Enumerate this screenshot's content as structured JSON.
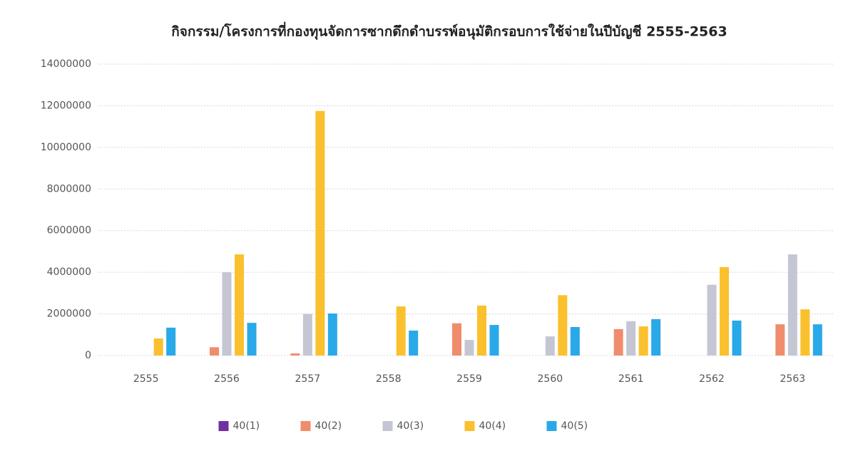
{
  "chart_data": {
    "type": "bar",
    "title": "กิจกรรม/โครงการที่กองทุนจัดการซากดึกดำบรรพ์อนุมัติกรอบการใช้จ่ายในปีบัญชี 2555-2563",
    "categories": [
      "2555",
      "2556",
      "2557",
      "2558",
      "2559",
      "2560",
      "2561",
      "2562",
      "2563"
    ],
    "series": [
      {
        "name": "40(1)",
        "color": "#7030a0",
        "values": [
          0,
          0,
          0,
          0,
          0,
          0,
          0,
          0,
          0
        ]
      },
      {
        "name": "40(2)",
        "color": "#f08c6c",
        "values": [
          0,
          400000,
          100000,
          0,
          1550000,
          0,
          1270000,
          0,
          1500000
        ]
      },
      {
        "name": "40(3)",
        "color": "#c4c6d4",
        "values": [
          0,
          4000000,
          2000000,
          0,
          750000,
          920000,
          1650000,
          3400000,
          4860000
        ]
      },
      {
        "name": "40(4)",
        "color": "#fbc02d",
        "values": [
          820000,
          4860000,
          11750000,
          2360000,
          2400000,
          2900000,
          1400000,
          4250000,
          2220000
        ]
      },
      {
        "name": "40(5)",
        "color": "#29a9e8",
        "values": [
          1340000,
          1570000,
          2020000,
          1200000,
          1470000,
          1370000,
          1750000,
          1680000,
          1500000
        ]
      }
    ],
    "ylim": [
      0,
      14000000
    ],
    "yticks": [
      0,
      2000000,
      4000000,
      6000000,
      8000000,
      10000000,
      12000000,
      14000000
    ],
    "grid": true,
    "legend": "bottom"
  }
}
